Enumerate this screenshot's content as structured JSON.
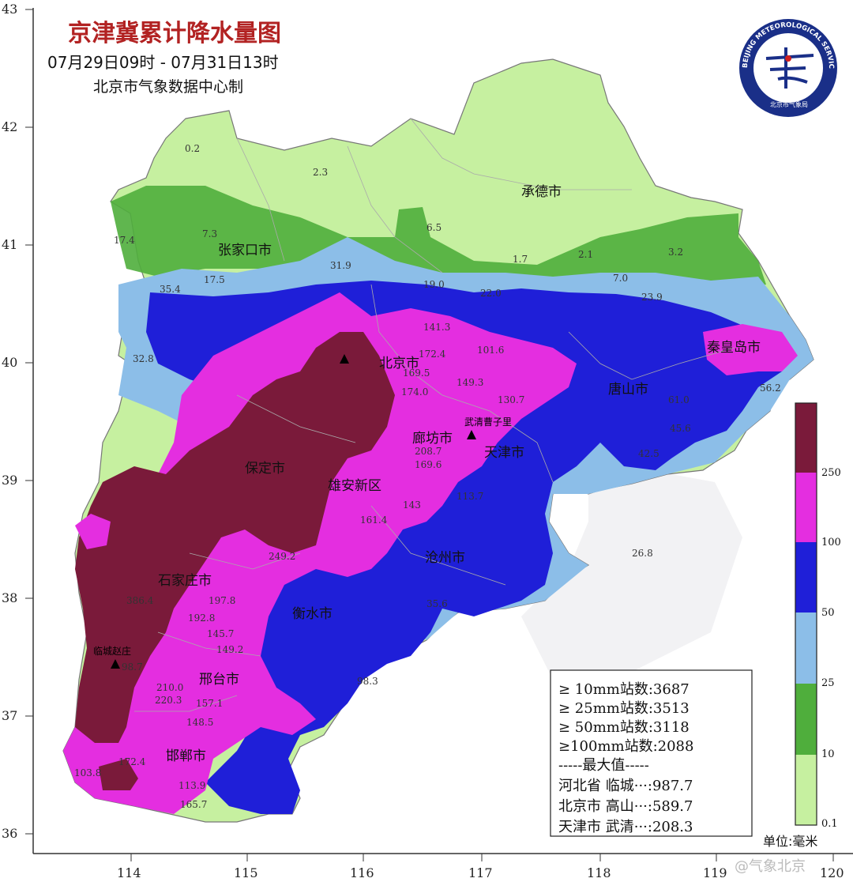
{
  "header": {
    "title": "京津冀累计降水量图",
    "period": "07月29日09时 - 07月31日13时",
    "producer": "北京市气象数据中心制"
  },
  "logo": {
    "ring_text": "BEIJING METEOROLOGICAL SERVICE",
    "inner_text": "北京市气象局"
  },
  "axes": {
    "y_ticks": [
      "43",
      "42",
      "41",
      "40",
      "39",
      "38",
      "37",
      "36"
    ],
    "x_ticks": [
      "114",
      "115",
      "116",
      "117",
      "118",
      "119",
      "120"
    ]
  },
  "cities": [
    {
      "name": "承德市"
    },
    {
      "name": "张家口市"
    },
    {
      "name": "北京市"
    },
    {
      "name": "秦皇岛市"
    },
    {
      "name": "唐山市"
    },
    {
      "name": "廊坊市"
    },
    {
      "name": "天津市"
    },
    {
      "name": "保定市"
    },
    {
      "name": "雄安新区"
    },
    {
      "name": "沧州市"
    },
    {
      "name": "石家庄市"
    },
    {
      "name": "衡水市"
    },
    {
      "name": "邢台市"
    },
    {
      "name": "邯郸市"
    }
  ],
  "stations": [
    {
      "name": "临城赵庄"
    },
    {
      "name": "武清曹子里"
    }
  ],
  "values": [
    {
      "text": "0.2"
    },
    {
      "text": "2.3"
    },
    {
      "text": "6.5"
    },
    {
      "text": "7.3"
    },
    {
      "text": "17.4"
    },
    {
      "text": "1.7"
    },
    {
      "text": "2.1"
    },
    {
      "text": "3.2"
    },
    {
      "text": "31.9"
    },
    {
      "text": "17.5"
    },
    {
      "text": "19.0"
    },
    {
      "text": "22.0"
    },
    {
      "text": "7.0"
    },
    {
      "text": "23.9"
    },
    {
      "text": "35.4"
    },
    {
      "text": "32.8"
    },
    {
      "text": "61.0"
    },
    {
      "text": "56.2"
    },
    {
      "text": "45.6"
    },
    {
      "text": "42.5"
    },
    {
      "text": "26.8"
    },
    {
      "text": "208.7"
    },
    {
      "text": "169.6"
    },
    {
      "text": "113.7"
    },
    {
      "text": "143"
    },
    {
      "text": "249.2"
    },
    {
      "text": "197.8"
    },
    {
      "text": "192.8"
    },
    {
      "text": "149.2"
    },
    {
      "text": "145.7"
    },
    {
      "text": "157.1"
    },
    {
      "text": "148.5"
    },
    {
      "text": "113.9"
    },
    {
      "text": "165.7"
    },
    {
      "text": "172.4"
    },
    {
      "text": "103.8"
    },
    {
      "text": "35.6"
    },
    {
      "text": "98.3"
    },
    {
      "text": "141.3"
    },
    {
      "text": "172.4"
    },
    {
      "text": "101.6"
    },
    {
      "text": "130.7"
    },
    {
      "text": "149.3"
    },
    {
      "text": "174.0"
    },
    {
      "text": "161.4"
    },
    {
      "text": "220.3"
    },
    {
      "text": "210.0"
    },
    {
      "text": "98.7"
    },
    {
      "text": "169.5"
    },
    {
      "text": "386.4"
    }
  ],
  "legend": {
    "bins": [
      {
        "range": "0.1–10",
        "color": "#c6f0a0"
      },
      {
        "range": "10–25",
        "color": "#4fae3c"
      },
      {
        "range": "25–50",
        "color": "#8cbee8"
      },
      {
        "range": "50–100",
        "color": "#1f1fd8"
      },
      {
        "range": "100–250",
        "color": "#e42ee0"
      },
      {
        "range": "≥250",
        "color": "#7a1a3a"
      }
    ],
    "tick_labels": [
      "0.1",
      "10",
      "25",
      "50",
      "100",
      "250"
    ],
    "unit": "单位:毫米"
  },
  "stats": {
    "rows": [
      "≥ 10mm站数:3687",
      "≥ 25mm站数:3513",
      "≥ 50mm站数:3118",
      "≥100mm站数:2088"
    ],
    "max_header": "-----最大值-----",
    "max_rows": [
      "河北省 临城···:987.7",
      "北京市 高山···:589.7",
      "天津市 武清···:208.3"
    ]
  },
  "watermark": "@气象北京",
  "colors": {
    "title_red": "#b22222",
    "light_green": "#c6f0a0",
    "green": "#4fae3c",
    "light_blue": "#8cbee8",
    "blue": "#1f1fd8",
    "magenta": "#e42ee0",
    "maroon": "#7a1a3a",
    "sea_gray": "#c8c8d0"
  }
}
